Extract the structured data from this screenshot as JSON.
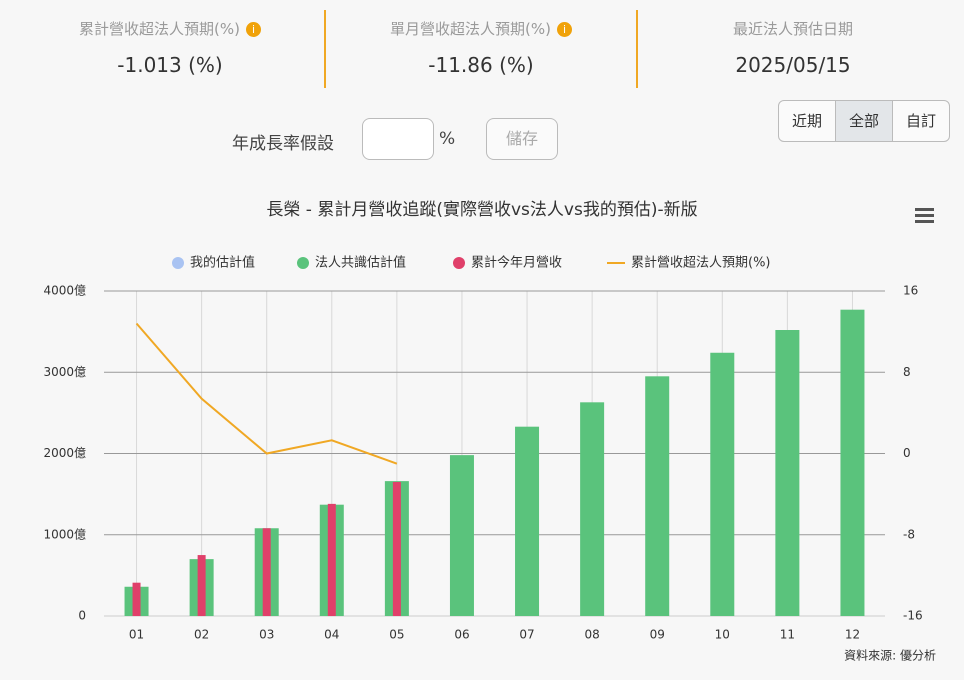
{
  "stats": [
    {
      "label": "累計營收超法人預期(%)",
      "value": "-1.013 (%)"
    },
    {
      "label": "單月營收超法人預期(%)",
      "value": "-11.86 (%)"
    },
    {
      "label": "最近法人預估日期",
      "value": "2025/05/15"
    }
  ],
  "controls": {
    "growth_label": "年成長率假設",
    "unit": "%",
    "save": "儲存",
    "ranges": [
      "近期",
      "全部",
      "自訂"
    ],
    "active_range": 1
  },
  "chart_data": {
    "type": "bar",
    "title": "長榮 - 累計月營收追蹤(實際營收vs法人vs我的預估)-新版",
    "categories": [
      "01",
      "02",
      "03",
      "04",
      "05",
      "06",
      "07",
      "08",
      "09",
      "10",
      "11",
      "12"
    ],
    "series": [
      {
        "name": "我的估計值",
        "color": "#a9c3f2",
        "values": [
          null,
          null,
          null,
          null,
          null,
          null,
          null,
          null,
          null,
          null,
          null,
          null
        ]
      },
      {
        "name": "法人共識估計值",
        "color": "#5ac37c",
        "values": [
          360,
          700,
          1080,
          1370,
          1660,
          1980,
          2330,
          2630,
          2950,
          3240,
          3520,
          3770
        ]
      },
      {
        "name": "累計今年月營收",
        "color": "#e0406a",
        "values": [
          410,
          750,
          1080,
          1380,
          1650,
          null,
          null,
          null,
          null,
          null,
          null,
          null
        ]
      },
      {
        "name": "累計營收超法人預期(%)",
        "color": "#f0a824",
        "type": "line",
        "axis": "y2",
        "values": [
          12.8,
          5.4,
          0,
          1.3,
          -1.0,
          null,
          null,
          null,
          null,
          null,
          null,
          null
        ]
      }
    ],
    "ylim": [
      0,
      4000
    ],
    "yticks": [
      0,
      {
        "value": 1000,
        "label": "1000億"
      },
      {
        "value": 2000,
        "label": "2000億"
      },
      {
        "value": 3000,
        "label": "3000億"
      },
      {
        "value": 4000,
        "label": "4000億"
      }
    ],
    "y2lim": [
      -16,
      16
    ],
    "y2ticks": [
      -16,
      -8,
      0,
      8,
      16
    ],
    "grid": true,
    "legend": "top"
  },
  "source": "資料來源: 優分析"
}
